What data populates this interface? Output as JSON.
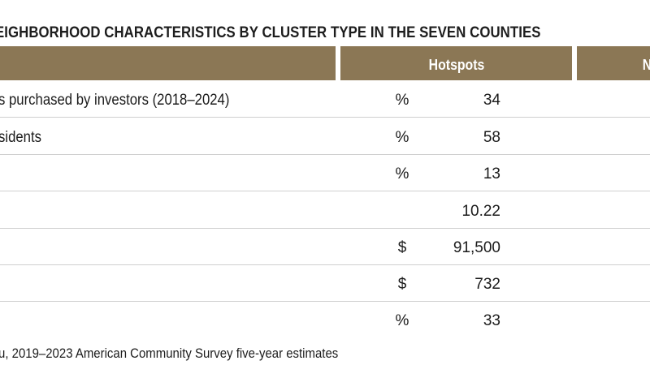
{
  "table": {
    "title": "EIGHBORHOOD CHARACTERISTICS BY CLUSTER TYPE IN THE SEVEN COUNTIES",
    "columns": {
      "label": "",
      "hotspots": "Hotspots",
      "next": "N"
    },
    "rows": [
      {
        "label": "s purchased by investors (2018–2024)",
        "unit": "%",
        "value": "34"
      },
      {
        "label": "sidents",
        "unit": "%",
        "value": "58"
      },
      {
        "label": "",
        "unit": "%",
        "value": "13"
      },
      {
        "label": "",
        "unit": "",
        "value": "10.22"
      },
      {
        "label": "",
        "unit": "$",
        "value": "91,500"
      },
      {
        "label": "",
        "unit": "$",
        "value": "732"
      },
      {
        "label": "",
        "unit": "%",
        "value": "33"
      }
    ],
    "source": "u, 2019–2023 American Community Survey five-year estimates"
  },
  "colors": {
    "header_bg": "#8b7755",
    "header_text": "#ffffff",
    "divider": "#cfcfcf"
  }
}
